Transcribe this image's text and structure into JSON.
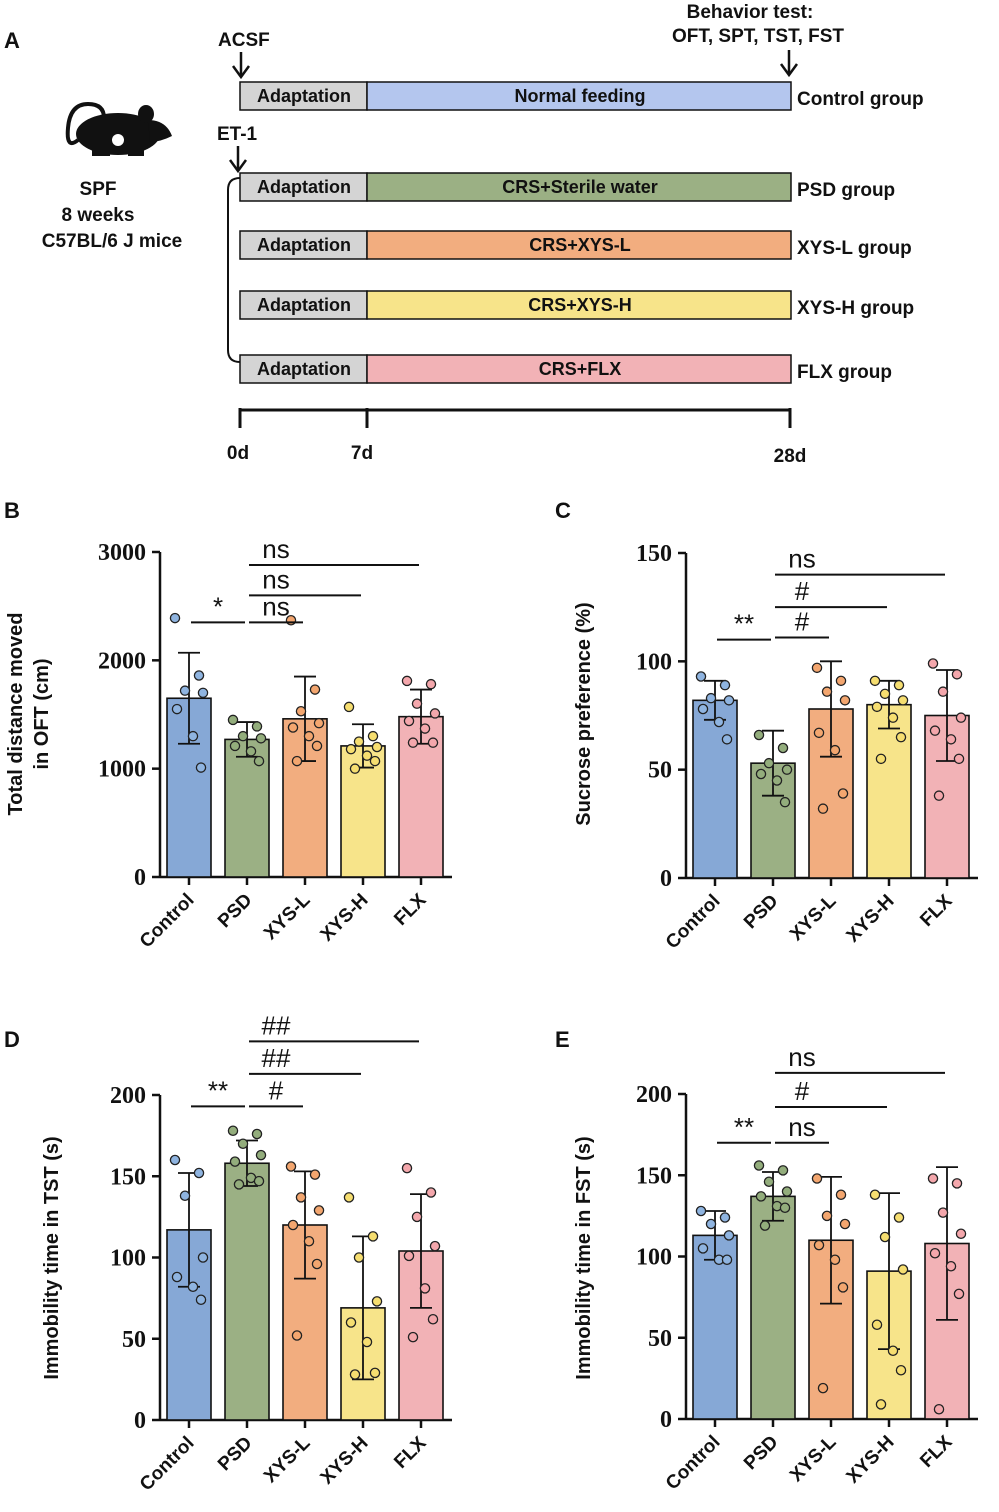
{
  "panel_labels": {
    "a": "A",
    "b": "B",
    "c": "C",
    "d": "D",
    "e": "E"
  },
  "timeline": {
    "acsf_label": "ACSF",
    "et1_label": "ET-1",
    "behavior_title": "Behavior test:",
    "behavior_tests": "OFT, SPT, TST, FST",
    "mouse": {
      "line1": "SPF",
      "line2": "8 weeks",
      "line3": "C57BL/6 J mice"
    },
    "adaptation_label": "Adaptation",
    "rows": [
      {
        "treatment": "Normal feeding",
        "group": "Control group",
        "color": "#b4c6ee"
      },
      {
        "treatment": "CRS+Sterile water",
        "group": "PSD group",
        "color": "#9bb084"
      },
      {
        "treatment": "CRS+XYS-L",
        "group": "XYS-L group",
        "color": "#f2ad7f"
      },
      {
        "treatment": "CRS+XYS-H",
        "group": "XYS-H group",
        "color": "#f7e48a"
      },
      {
        "treatment": "CRS+FLX",
        "group": "FLX group",
        "color": "#f2b2b6"
      }
    ],
    "adaptation_color": "#d4d4d4",
    "ticks": [
      "0d",
      "7d",
      "28d"
    ]
  },
  "colors": {
    "bars": [
      "#86a8d6",
      "#9bb084",
      "#f2ad7f",
      "#f7e48a",
      "#f2b2b6"
    ],
    "dots": [
      "#8fb4e0",
      "#93ad7c",
      "#f3a66f",
      "#f6de70",
      "#f4a7ac"
    ]
  },
  "chart_data": [
    {
      "type": "bar",
      "id": "B",
      "categories": [
        "Control",
        "PSD",
        "XYS-L",
        "XYS-H",
        "FLX"
      ],
      "values": [
        1650,
        1270,
        1460,
        1210,
        1480
      ],
      "errors": [
        420,
        160,
        390,
        200,
        250
      ],
      "points": [
        [
          2390,
          1860,
          1720,
          1700,
          1550,
          1300,
          1010
        ],
        [
          1450,
          1390,
          1300,
          1280,
          1210,
          1160,
          1070
        ],
        [
          2370,
          1730,
          1530,
          1420,
          1380,
          1300,
          1210,
          1070
        ],
        [
          1570,
          1300,
          1250,
          1200,
          1180,
          1120,
          1070,
          1000
        ],
        [
          1810,
          1780,
          1600,
          1510,
          1440,
          1370,
          1240,
          1240
        ]
      ],
      "ylabel": "Total distance moved in OFT (cm)",
      "ylabel_lines": [
        "Total distance moved",
        "in OFT (cm)"
      ],
      "ylim": [
        0,
        3000
      ],
      "yticks": [
        "0",
        "1000",
        "2000",
        "3000"
      ],
      "yticks_val": [
        0,
        1000,
        2000,
        3000
      ],
      "annotations": [
        {
          "from": 0,
          "to": 1,
          "y": 2350,
          "text": "*"
        },
        {
          "from": 1,
          "to": 2,
          "y": 2350,
          "text": "ns"
        },
        {
          "from": 1,
          "to": 3,
          "y": 2600,
          "text": "ns"
        },
        {
          "from": 1,
          "to": 4,
          "y": 2880,
          "text": "ns"
        }
      ]
    },
    {
      "type": "bar",
      "id": "C",
      "categories": [
        "Control",
        "PSD",
        "XYS-L",
        "XYS-H",
        "FLX"
      ],
      "values": [
        82,
        53,
        78,
        80,
        75
      ],
      "errors": [
        9,
        15,
        22,
        11,
        21
      ],
      "points": [
        [
          93,
          89,
          83,
          82,
          78,
          72,
          64
        ],
        [
          66,
          60,
          53,
          50,
          48,
          45,
          35
        ],
        [
          97,
          91,
          86,
          82,
          67,
          59,
          39,
          32
        ],
        [
          91,
          89,
          85,
          82,
          79,
          74,
          65,
          55
        ],
        [
          99,
          94,
          86,
          74,
          68,
          64,
          55,
          38
        ]
      ],
      "ylabel": "Sucrose preference (%)",
      "ylabel_lines": [
        "Sucrose preference (%)"
      ],
      "ylim": [
        0,
        150
      ],
      "yticks": [
        "0",
        "50",
        "100",
        "150"
      ],
      "yticks_val": [
        0,
        50,
        100,
        150
      ],
      "annotations": [
        {
          "from": 0,
          "to": 1,
          "y": 110,
          "text": "**"
        },
        {
          "from": 1,
          "to": 2,
          "y": 111,
          "text": "#"
        },
        {
          "from": 1,
          "to": 3,
          "y": 125,
          "text": "#"
        },
        {
          "from": 1,
          "to": 4,
          "y": 140,
          "text": "ns"
        }
      ]
    },
    {
      "type": "bar",
      "id": "D",
      "categories": [
        "Control",
        "PSD",
        "XYS-L",
        "XYS-H",
        "FLX"
      ],
      "values": [
        117,
        158,
        120,
        69,
        104
      ],
      "errors": [
        35,
        14,
        33,
        44,
        35
      ],
      "points": [
        [
          160,
          152,
          138,
          100,
          88,
          82,
          74
        ],
        [
          178,
          176,
          170,
          163,
          159,
          149,
          147,
          145
        ],
        [
          156,
          151,
          137,
          129,
          120,
          110,
          96,
          52
        ],
        [
          137,
          113,
          100,
          73,
          60,
          48,
          29,
          28
        ],
        [
          155,
          140,
          125,
          107,
          101,
          81,
          62,
          51
        ]
      ],
      "ylabel": "Immobility time in TST (s)",
      "ylabel_lines": [
        "Immobility time in TST (s)"
      ],
      "ylim": [
        0,
        200
      ],
      "yticks": [
        "0",
        "50",
        "100",
        "150",
        "200"
      ],
      "yticks_val": [
        0,
        50,
        100,
        150,
        200
      ],
      "annotations": [
        {
          "from": 0,
          "to": 1,
          "y": 193,
          "text": "**"
        },
        {
          "from": 1,
          "to": 2,
          "y": 193,
          "text": "#"
        },
        {
          "from": 1,
          "to": 3,
          "y": 213,
          "text": "##"
        },
        {
          "from": 1,
          "to": 4,
          "y": 233,
          "text": "##"
        }
      ]
    },
    {
      "type": "bar",
      "id": "E",
      "categories": [
        "Control",
        "PSD",
        "XYS-L",
        "XYS-H",
        "FLX"
      ],
      "values": [
        113,
        137,
        110,
        91,
        108
      ],
      "errors": [
        15,
        15,
        39,
        48,
        47
      ],
      "points": [
        [
          128,
          124,
          120,
          113,
          105,
          98,
          98
        ],
        [
          156,
          153,
          146,
          140,
          137,
          131,
          130,
          119
        ],
        [
          148,
          138,
          125,
          120,
          107,
          98,
          81,
          19
        ],
        [
          138,
          124,
          112,
          92,
          58,
          42,
          30,
          9
        ],
        [
          148,
          145,
          127,
          114,
          102,
          94,
          77,
          6
        ]
      ],
      "ylabel": "Immobility time in FST (s)",
      "ylabel_lines": [
        "Immobility time in FST (s)"
      ],
      "ylim": [
        0,
        200
      ],
      "yticks": [
        "0",
        "50",
        "100",
        "150",
        "200"
      ],
      "yticks_val": [
        0,
        50,
        100,
        150,
        200
      ],
      "annotations": [
        {
          "from": 0,
          "to": 1,
          "y": 170,
          "text": "**"
        },
        {
          "from": 1,
          "to": 2,
          "y": 170,
          "text": "ns"
        },
        {
          "from": 1,
          "to": 3,
          "y": 192,
          "text": "#"
        },
        {
          "from": 1,
          "to": 4,
          "y": 213,
          "text": "ns"
        }
      ]
    }
  ]
}
